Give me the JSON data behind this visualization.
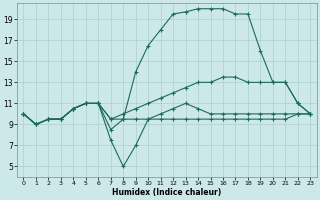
{
  "xlabel": "Humidex (Indice chaleur)",
  "bg_color": "#cce8e8",
  "grid_color": "#aacfcf",
  "line_color": "#1a6b5a",
  "xlim": [
    -0.5,
    23.5
  ],
  "ylim": [
    4,
    20.5
  ],
  "xticks": [
    0,
    1,
    2,
    3,
    4,
    5,
    6,
    7,
    8,
    9,
    10,
    11,
    12,
    13,
    14,
    15,
    16,
    17,
    18,
    19,
    20,
    21,
    22,
    23
  ],
  "yticks": [
    5,
    7,
    9,
    11,
    13,
    15,
    17,
    19
  ],
  "line1_x": [
    0,
    1,
    2,
    3,
    4,
    5,
    6,
    7,
    8,
    9,
    10,
    11,
    12,
    13,
    14,
    15,
    16,
    17,
    18,
    19,
    20,
    21,
    22,
    23
  ],
  "line1_y": [
    10,
    9,
    9.5,
    9.5,
    10.5,
    11,
    11,
    7.5,
    5,
    7,
    9.5,
    10,
    10.5,
    11,
    10.5,
    10,
    10,
    10,
    10,
    10,
    10,
    10,
    10,
    10
  ],
  "line2_x": [
    0,
    1,
    2,
    3,
    4,
    5,
    6,
    7,
    8,
    9,
    10,
    11,
    12,
    13,
    14,
    15,
    16,
    17,
    18,
    19,
    20,
    21,
    22,
    23
  ],
  "line2_y": [
    10,
    9,
    9.5,
    9.5,
    10.5,
    11,
    11,
    8.5,
    9.5,
    14,
    16.5,
    18,
    19.5,
    19.7,
    20,
    20,
    20,
    19.5,
    19.5,
    16,
    13,
    13,
    11,
    10
  ],
  "line3_x": [
    0,
    1,
    2,
    3,
    4,
    5,
    6,
    7,
    8,
    9,
    10,
    11,
    12,
    13,
    14,
    15,
    16,
    17,
    18,
    19,
    20,
    21,
    22,
    23
  ],
  "line3_y": [
    10,
    9,
    9.5,
    9.5,
    10.5,
    11,
    11,
    9.5,
    10,
    10.5,
    11,
    11.5,
    12,
    12.5,
    13,
    13,
    13.5,
    13.5,
    13,
    13,
    13,
    13,
    11,
    10
  ],
  "line4_x": [
    0,
    1,
    2,
    3,
    4,
    5,
    6,
    7,
    8,
    9,
    10,
    11,
    12,
    13,
    14,
    15,
    16,
    17,
    18,
    19,
    20,
    21,
    22,
    23
  ],
  "line4_y": [
    10,
    9,
    9.5,
    9.5,
    10.5,
    11,
    11,
    9.5,
    9.5,
    9.5,
    9.5,
    9.5,
    9.5,
    9.5,
    9.5,
    9.5,
    9.5,
    9.5,
    9.5,
    9.5,
    9.5,
    9.5,
    10,
    10
  ]
}
